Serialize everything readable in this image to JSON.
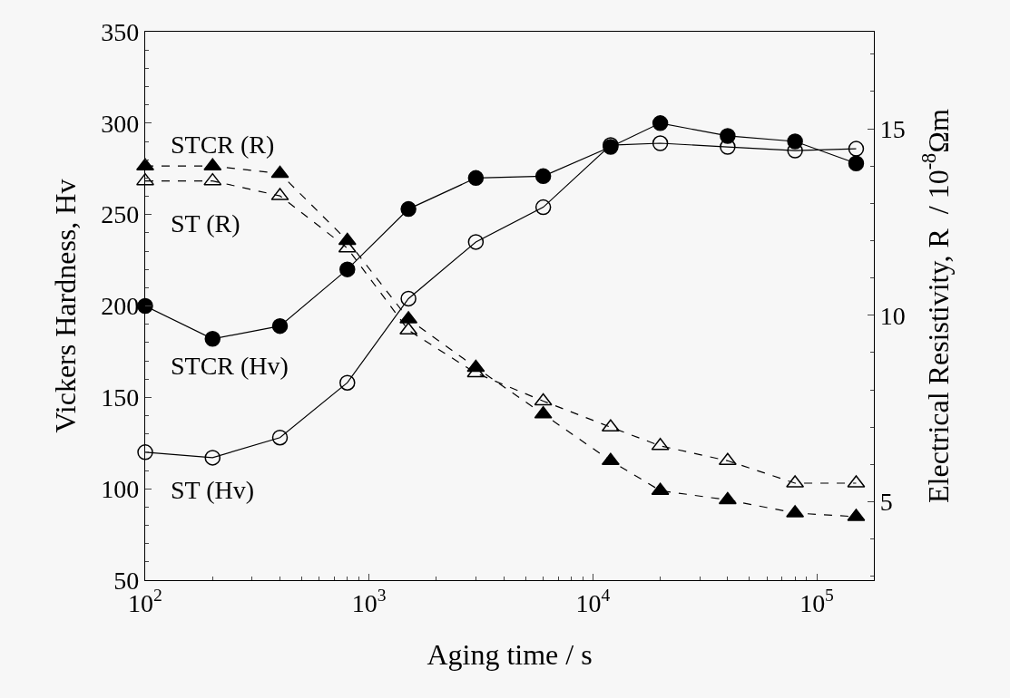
{
  "chart_data": {
    "type": "line",
    "xlabel": "Aging time / s",
    "ylabel": "Vickers Hardness, Hv",
    "y2label": "Electrical Resistivity, R  / 10$^{-8}$Ωm",
    "x": [
      100,
      200,
      400,
      800,
      1500,
      3000,
      6000,
      12000,
      20000,
      40000,
      80000,
      150000
    ],
    "log": "x",
    "xlim": [
      100,
      180000
    ],
    "xticks": [
      {
        "value": 100,
        "label": "10$^{2}$"
      },
      {
        "value": 1000,
        "label": "10$^{3}$"
      },
      {
        "value": 10000,
        "label": "10$^{4}$"
      },
      {
        "value": 100000,
        "label": "10$^{5}$"
      }
    ],
    "ylim": [
      50,
      350
    ],
    "yticks": [
      50,
      100,
      150,
      200,
      250,
      300,
      350
    ],
    "y2lim": [
      2.9,
      17.6
    ],
    "y2ticks": [
      5,
      10,
      15
    ],
    "grid": false,
    "legend": false,
    "series": [
      {
        "name": "STCR (R)",
        "color": "#000000",
        "axis": "y2",
        "marker": "triangle",
        "line_style": "dashed",
        "values": [
          14.0,
          14.0,
          13.8,
          12.0,
          9.9,
          8.6,
          7.35,
          6.1,
          5.3,
          5.05,
          4.7,
          4.6
        ]
      },
      {
        "name": "ST (R)",
        "color": "#000000",
        "axis": "y2",
        "marker": "triangle-open",
        "line_style": "dashed",
        "values": [
          13.6,
          13.6,
          13.2,
          11.8,
          9.6,
          8.45,
          7.7,
          7.0,
          6.5,
          6.1,
          5.5,
          5.5
        ]
      },
      {
        "name": "STCR (Hv)",
        "color": "#000000",
        "marker": "circle",
        "line_style": "solid",
        "values": [
          200,
          182,
          189,
          220,
          253,
          270,
          271,
          287,
          300,
          293,
          290,
          278
        ]
      },
      {
        "name": "ST (Hv)",
        "color": "#000000",
        "marker": "circle-open",
        "line_style": "solid",
        "values": [
          120,
          117,
          128,
          158,
          204,
          235,
          254,
          288,
          289,
          287,
          285,
          286
        ]
      }
    ]
  }
}
